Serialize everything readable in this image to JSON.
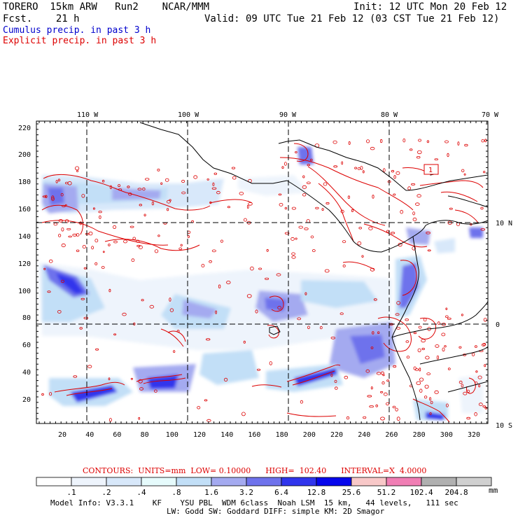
{
  "header": {
    "model": "TORERO  15km ARW   Run2    NCAR/MMM",
    "init": "Init: 12 UTC Mon 20 Feb 12",
    "fcst": "Fcst.    21 h",
    "valid": "Valid: 09 UTC Tue 21 Feb 12 (03 CST Tue 21 Feb 12)",
    "cumulus": "Cumulus precip. in past 3 h",
    "explicit": "Explicit precip. in past 3 h"
  },
  "axes": {
    "top_labels": [
      "110 W",
      "100 W",
      "90 W",
      "80 W",
      "70 W"
    ],
    "right_labels": [
      "10 N",
      "0",
      "10 S"
    ],
    "left_labels": [
      "220",
      "200",
      "180",
      "160",
      "140",
      "120",
      "100",
      "80",
      "60",
      "40",
      "20"
    ],
    "bottom_labels": [
      "20",
      "40",
      "60",
      "80",
      "100",
      "120",
      "140",
      "160",
      "180",
      "200",
      "220",
      "240",
      "260",
      "280",
      "300",
      "320"
    ]
  },
  "map_labels": {
    "box_label": "1"
  },
  "contour_info": "CONTOURS:  UNITS=mm  LOW= 0.10000      HIGH=  102.40      INTERVAL=X  4.0000",
  "legend": {
    "labels": [
      ".1",
      ".2",
      ".4",
      ".8",
      "1.6",
      "3.2",
      "6.4",
      "12.8",
      "25.6",
      "51.2",
      "102.4",
      "204.8"
    ],
    "unit": "mm",
    "colors": [
      "#ffffff",
      "#eef4fc",
      "#d8e8fa",
      "#e6fbfc",
      "#c2dff7",
      "#a4aaf0",
      "#6e72ec",
      "#3035ec",
      "#0606ec",
      "#f8c8c8",
      "#f07eb4",
      "#b0b0b0",
      "#d0d0d0",
      "#d9aaf2"
    ]
  },
  "model_info": {
    "line1": "Model Info: V3.3.1    KF    YSU PBL  WDM 6class  Noah LSM  15 km,   44 levels,   111 sec",
    "line2": "LW: Godd SW: Goddard DIFF: simple KM: 2D Smagor"
  }
}
